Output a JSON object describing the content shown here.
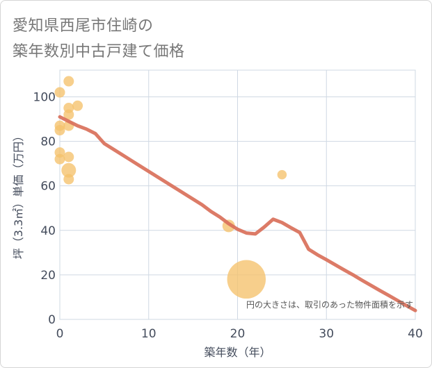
{
  "title_line1": "愛知県西尾市住崎の",
  "title_line2": "築年数別中古戸建て価格",
  "chart_data": {
    "type": "scatter",
    "title": "愛知県西尾市住崎の築年数別中古戸建て価格",
    "xlabel": "築年数（年）",
    "ylabel": "坪（3.3㎡）単価（万円）",
    "xlim": [
      0,
      40
    ],
    "ylim": [
      0,
      112
    ],
    "xticks": [
      0,
      10,
      20,
      30,
      40
    ],
    "yticks": [
      0,
      20,
      40,
      60,
      80,
      100
    ],
    "grid": true,
    "note": "円の大きさは、取引のあった物件面積を示す",
    "colors": {
      "points": "#f5c26b",
      "line": "#d9705a",
      "grid": "#cfd8e3"
    },
    "points": [
      {
        "x": 0,
        "y": 102,
        "size": 1
      },
      {
        "x": 0,
        "y": 87,
        "size": 1
      },
      {
        "x": 0,
        "y": 85,
        "size": 1
      },
      {
        "x": 0,
        "y": 75,
        "size": 1
      },
      {
        "x": 0,
        "y": 72,
        "size": 1
      },
      {
        "x": 1,
        "y": 107,
        "size": 1
      },
      {
        "x": 1,
        "y": 95,
        "size": 1
      },
      {
        "x": 1,
        "y": 92,
        "size": 1
      },
      {
        "x": 1,
        "y": 87,
        "size": 1
      },
      {
        "x": 1,
        "y": 73,
        "size": 1
      },
      {
        "x": 1,
        "y": 67,
        "size": 1.4
      },
      {
        "x": 1,
        "y": 63,
        "size": 1
      },
      {
        "x": 2,
        "y": 96,
        "size": 1
      },
      {
        "x": 19,
        "y": 42,
        "size": 1.2
      },
      {
        "x": 21,
        "y": 18,
        "size": 3.7
      },
      {
        "x": 25,
        "y": 65,
        "size": 0.9
      }
    ],
    "trend": {
      "x": [
        0,
        1,
        2,
        3,
        4,
        5,
        6,
        7,
        8,
        9,
        10,
        11,
        12,
        13,
        14,
        15,
        16,
        17,
        18,
        19,
        20,
        21,
        22,
        23,
        24,
        25,
        26,
        27,
        28,
        29,
        30,
        31,
        32,
        33,
        34,
        35,
        36,
        37,
        38,
        39,
        40
      ],
      "y": [
        91,
        89,
        87,
        85.5,
        83.5,
        79,
        76.5,
        74,
        71.5,
        69,
        66.5,
        64,
        61.5,
        59,
        56.5,
        54,
        51.5,
        48.5,
        46,
        43,
        40.5,
        38.8,
        38.4,
        41.5,
        45,
        43.5,
        41.2,
        39,
        31.5,
        29,
        26.8,
        24.5,
        22.2,
        20,
        17.6,
        15.3,
        13,
        10.8,
        8.5,
        6.2,
        4
      ]
    }
  }
}
